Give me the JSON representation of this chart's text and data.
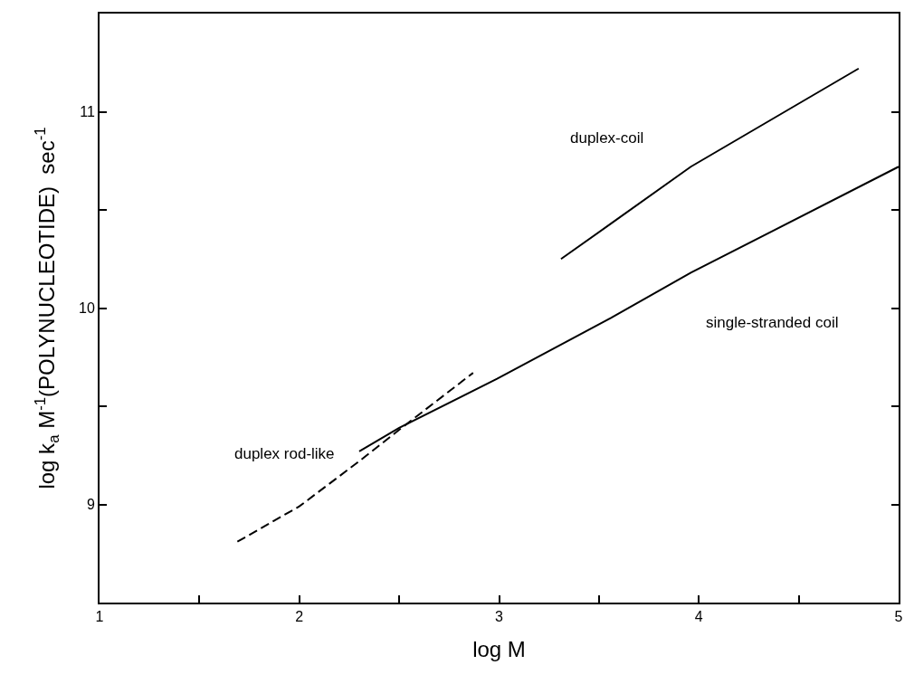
{
  "chart_data": {
    "type": "line",
    "xlabel": "log M",
    "ylabel": "log k$_{a}$ M$^{-1}$(POLYNUCLEOTIDE)  sec$^{-1}$",
    "series": [
      {
        "name": "duplex rod-like",
        "color": "#000000",
        "line_style": "dashed",
        "x": [
          1.69,
          2.0,
          2.3,
          2.5,
          2.87
        ],
        "values": [
          8.81,
          8.99,
          9.22,
          9.38,
          9.67
        ]
      },
      {
        "name": "single-stranded coil",
        "color": "#000000",
        "line_style": "solid",
        "x": [
          2.3,
          2.5,
          2.99,
          3.56,
          3.96,
          5.0
        ],
        "values": [
          9.27,
          9.39,
          9.64,
          9.95,
          10.18,
          10.72
        ]
      },
      {
        "name": "duplex-coil",
        "color": "#000000",
        "line_style": "solid",
        "x": [
          3.31,
          3.56,
          3.96,
          4.8
        ],
        "values": [
          10.25,
          10.43,
          10.72,
          11.22
        ]
      }
    ],
    "xlim": [
      1,
      5
    ],
    "xticks": [
      1,
      {
        "value": 1.5,
        "label": null
      },
      2,
      {
        "value": 2.5,
        "label": null
      },
      3,
      {
        "value": 3.5,
        "label": null
      },
      4,
      {
        "value": 4.5,
        "label": null
      },
      5
    ],
    "ylim": [
      8.5,
      11.5
    ],
    "yticks": [
      {
        "value": 8.5,
        "label": null
      },
      9,
      {
        "value": 9.5,
        "label": null
      },
      10,
      {
        "value": 10.5,
        "label": null
      },
      11
    ],
    "grid": false,
    "legend": false,
    "marker": "none"
  }
}
